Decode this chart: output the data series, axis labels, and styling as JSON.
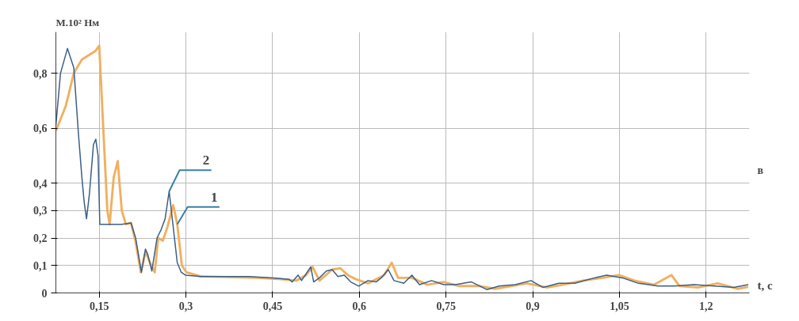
{
  "chart_data": {
    "type": "line",
    "xlabel": "t, c",
    "ylabel": "M.10² Нм",
    "xlim": [
      0.075,
      1.275
    ],
    "xticks": [
      {
        "value": 0.15,
        "label": "0,15"
      },
      {
        "value": 0.3,
        "label": "0,3"
      },
      {
        "value": 0.45,
        "label": "0,45"
      },
      {
        "value": 0.6,
        "label": "0,6"
      },
      {
        "value": 0.75,
        "label": "0,75"
      },
      {
        "value": 0.9,
        "label": "0,9"
      },
      {
        "value": 1.05,
        "label": "1,05"
      },
      {
        "value": 1.2,
        "label": "1,2"
      }
    ],
    "ylim": [
      0,
      0.95
    ],
    "yticks": [
      0,
      {
        "value": 0.1,
        "label": "0,1"
      },
      {
        "value": 0.2,
        "label": "0,2"
      },
      {
        "value": 0.3,
        "label": "0,3"
      },
      {
        "value": 0.4,
        "label": "0,4"
      },
      {
        "value": 0.6,
        "label": "0,6"
      },
      {
        "value": 0.8,
        "label": "0,8"
      }
    ],
    "grid": true,
    "series": [
      {
        "color": "#3a5f8a",
        "x": [
          0.075,
          0.083,
          0.095,
          0.106,
          0.114,
          0.12,
          0.124,
          0.128,
          0.133,
          0.14,
          0.144,
          0.148,
          0.151,
          0.189,
          0.205,
          0.213,
          0.223,
          0.23,
          0.234,
          0.241,
          0.25,
          0.257,
          0.264,
          0.271,
          0.278,
          0.285,
          0.292,
          0.299,
          0.326,
          0.409,
          0.45,
          0.478,
          0.484,
          0.494,
          0.5,
          0.516,
          0.521,
          0.531,
          0.543,
          0.553,
          0.563,
          0.574,
          0.585,
          0.599,
          0.615,
          0.629,
          0.638,
          0.65,
          0.66,
          0.677,
          0.691,
          0.704,
          0.725,
          0.746,
          0.766,
          0.794,
          0.821,
          0.842,
          0.87,
          0.897,
          0.918,
          0.945,
          0.973,
          1.007,
          1.028,
          1.055,
          1.083,
          1.117,
          1.145,
          1.179,
          1.214,
          1.248,
          1.273
        ],
        "values": [
          0.61,
          0.8,
          0.89,
          0.82,
          0.58,
          0.42,
          0.33,
          0.27,
          0.36,
          0.54,
          0.56,
          0.5,
          0.25,
          0.25,
          0.255,
          0.2,
          0.075,
          0.16,
          0.14,
          0.08,
          0.2,
          0.23,
          0.27,
          0.37,
          0.24,
          0.11,
          0.075,
          0.065,
          0.06,
          0.06,
          0.055,
          0.05,
          0.04,
          0.065,
          0.045,
          0.095,
          0.04,
          0.055,
          0.08,
          0.085,
          0.06,
          0.065,
          0.04,
          0.025,
          0.045,
          0.04,
          0.055,
          0.085,
          0.045,
          0.035,
          0.065,
          0.03,
          0.045,
          0.03,
          0.03,
          0.04,
          0.012,
          0.025,
          0.03,
          0.045,
          0.02,
          0.035,
          0.035,
          0.055,
          0.065,
          0.055,
          0.035,
          0.025,
          0.025,
          0.03,
          0.025,
          0.02,
          0.03
        ]
      },
      {
        "color": "#f0b060",
        "x": [
          0.075,
          0.092,
          0.106,
          0.12,
          0.143,
          0.15,
          0.157,
          0.164,
          0.168,
          0.175,
          0.182,
          0.189,
          0.196,
          0.205,
          0.213,
          0.222,
          0.23,
          0.238,
          0.246,
          0.252,
          0.26,
          0.268,
          0.278,
          0.285,
          0.293,
          0.301,
          0.326,
          0.422,
          0.464,
          0.491,
          0.508,
          0.519,
          0.531,
          0.553,
          0.567,
          0.58,
          0.594,
          0.615,
          0.643,
          0.656,
          0.667,
          0.691,
          0.718,
          0.746,
          0.773,
          0.808,
          0.835,
          0.863,
          0.89,
          0.925,
          0.952,
          0.987,
          1.021,
          1.049,
          1.076,
          1.11,
          1.14,
          1.154,
          1.186,
          1.22,
          1.255,
          1.273
        ],
        "values": [
          0.59,
          0.68,
          0.8,
          0.85,
          0.88,
          0.9,
          0.6,
          0.3,
          0.25,
          0.42,
          0.48,
          0.3,
          0.25,
          0.255,
          0.185,
          0.075,
          0.15,
          0.11,
          0.075,
          0.2,
          0.19,
          0.24,
          0.32,
          0.25,
          0.1,
          0.075,
          0.06,
          0.055,
          0.05,
          0.045,
          0.065,
          0.095,
          0.045,
          0.085,
          0.09,
          0.065,
          0.05,
          0.035,
          0.065,
          0.11,
          0.055,
          0.055,
          0.03,
          0.04,
          0.025,
          0.025,
          0.015,
          0.025,
          0.035,
          0.02,
          0.03,
          0.045,
          0.055,
          0.065,
          0.045,
          0.03,
          0.065,
          0.025,
          0.02,
          0.035,
          0.015,
          0.022
        ]
      }
    ],
    "annotations": [
      {
        "text": "2",
        "x": 0.271,
        "y": 0.37
      },
      {
        "text": "1",
        "x": 0.285,
        "y": 0.25
      },
      "в"
    ]
  }
}
